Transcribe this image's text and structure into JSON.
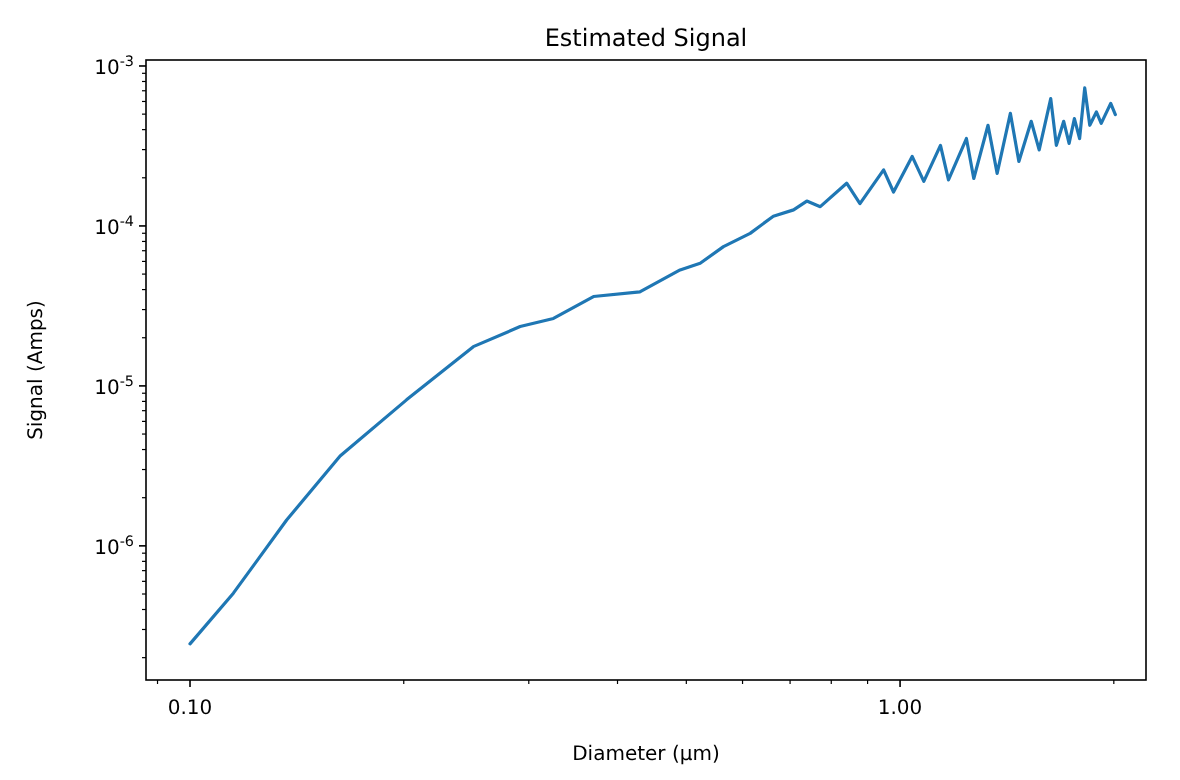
{
  "chart_data": {
    "type": "line",
    "title": "Estimated Signal",
    "xlabel": "Diameter (µm)",
    "ylabel": "Signal (Amps)",
    "log": "xy",
    "marker": "none",
    "line_style": "solid",
    "xlim": [
      0.0867,
      2.22
    ],
    "ylim": [
      1.45e-07,
      0.00109
    ],
    "xticks": [
      {
        "value": 0.09,
        "label": null
      },
      {
        "value": 0.1,
        "label": "0.10"
      },
      {
        "value": 0.2,
        "label": null
      },
      {
        "value": 0.3,
        "label": null
      },
      {
        "value": 0.4,
        "label": null
      },
      {
        "value": 0.5,
        "label": null
      },
      {
        "value": 0.6,
        "label": null
      },
      {
        "value": 0.7,
        "label": null
      },
      {
        "value": 0.8,
        "label": null
      },
      {
        "value": 0.9,
        "label": null
      },
      {
        "value": 1,
        "label": "1.00"
      },
      {
        "value": 2,
        "label": null
      }
    ],
    "yticks": [
      {
        "value": 2e-07,
        "label": null
      },
      {
        "value": 3e-07,
        "label": null
      },
      {
        "value": 4e-07,
        "label": null
      },
      {
        "value": 5e-07,
        "label": null
      },
      {
        "value": 6e-07,
        "label": null
      },
      {
        "value": 7e-07,
        "label": null
      },
      {
        "value": 8e-07,
        "label": null
      },
      {
        "value": 9e-07,
        "label": null
      },
      {
        "value": 1e-06,
        "label": "10$^{-6}$"
      },
      {
        "value": 2e-06,
        "label": null
      },
      {
        "value": 3e-06,
        "label": null
      },
      {
        "value": 4e-06,
        "label": null
      },
      {
        "value": 5e-06,
        "label": null
      },
      {
        "value": 6e-06,
        "label": null
      },
      {
        "value": 7e-06,
        "label": null
      },
      {
        "value": 8e-06,
        "label": null
      },
      {
        "value": 9e-06,
        "label": null
      },
      {
        "value": 1e-05,
        "label": "10$^{-5}$"
      },
      {
        "value": 2e-05,
        "label": null
      },
      {
        "value": 3e-05,
        "label": null
      },
      {
        "value": 4e-05,
        "label": null
      },
      {
        "value": 5e-05,
        "label": null
      },
      {
        "value": 6e-05,
        "label": null
      },
      {
        "value": 7e-05,
        "label": null
      },
      {
        "value": 8e-05,
        "label": null
      },
      {
        "value": 9e-05,
        "label": null
      },
      {
        "value": 0.0001,
        "label": "10$^{-4}$"
      },
      {
        "value": 0.0002,
        "label": null
      },
      {
        "value": 0.0003,
        "label": null
      },
      {
        "value": 0.0004,
        "label": null
      },
      {
        "value": 0.0005,
        "label": null
      },
      {
        "value": 0.0006,
        "label": null
      },
      {
        "value": 0.0007,
        "label": null
      },
      {
        "value": 0.0008,
        "label": null
      },
      {
        "value": 0.0009,
        "label": null
      },
      {
        "value": 0.001,
        "label": "10$^{-3}$"
      }
    ],
    "x": [
      0.1,
      0.1151,
      0.1368,
      0.1627,
      0.2018,
      0.2506,
      0.2917,
      0.325,
      0.37,
      0.43,
      0.49,
      0.523,
      0.564,
      0.615,
      0.663,
      0.708,
      0.739,
      0.772,
      0.841,
      0.878,
      0.948,
      0.979,
      1.04,
      1.08,
      1.14,
      1.17,
      1.24,
      1.27,
      1.33,
      1.37,
      1.43,
      1.47,
      1.53,
      1.57,
      1.63,
      1.66,
      1.7,
      1.73,
      1.76,
      1.79,
      1.82,
      1.85,
      1.89,
      1.92,
      1.98,
      2.01
    ],
    "series": [
      {
        "color": "#1f77b4",
        "values": [
          2.44e-07,
          5.06e-07,
          1.45e-06,
          3.65e-06,
          8.18e-06,
          1.76e-05,
          2.35e-05,
          2.64e-05,
          3.62e-05,
          3.87e-05,
          5.31e-05,
          5.84e-05,
          7.43e-05,
          8.99e-05,
          0.000115,
          0.000126,
          0.000143,
          0.000132,
          0.000185,
          0.000138,
          0.000224,
          0.000163,
          0.000272,
          0.00019,
          0.000319,
          0.000194,
          0.000352,
          0.000198,
          0.000426,
          0.000213,
          0.000506,
          0.000253,
          0.000451,
          0.000299,
          0.000625,
          0.000319,
          0.000451,
          0.000328,
          0.000469,
          0.000352,
          0.000729,
          0.000426,
          0.000516,
          0.000438,
          0.000584,
          0.000497
        ]
      }
    ]
  }
}
